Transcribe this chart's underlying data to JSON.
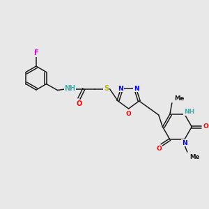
{
  "bg_color": "#e8e8e8",
  "bond_color": "#1a1a1a",
  "atom_colors": {
    "F": "#cc00cc",
    "N": "#0000ff",
    "O": "#ff0000",
    "S": "#b8b800",
    "NH": "#44aaaa",
    "C": "#1a1a1a"
  },
  "lw": 1.1,
  "fs": 7.0,
  "fs_small": 6.2
}
